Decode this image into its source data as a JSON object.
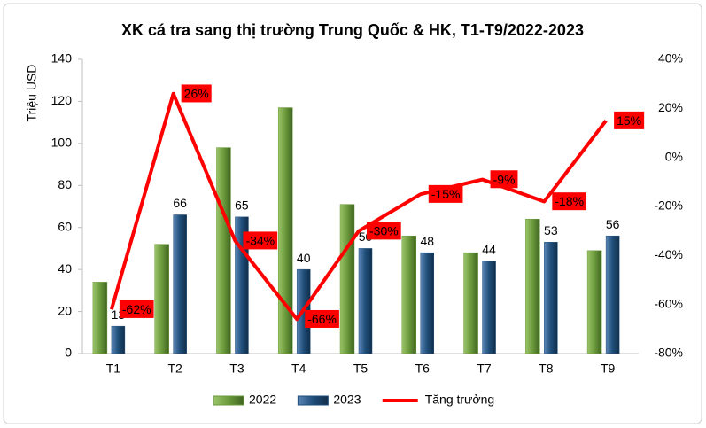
{
  "chart_data": {
    "type": "bar_line",
    "title": "XK cá tra sang thị trường Trung Quốc & HK, T1-T9/2022-2023",
    "y_label": "Triệu USD",
    "categories": [
      "T1",
      "T2",
      "T3",
      "T4",
      "T5",
      "T6",
      "T7",
      "T8",
      "T9"
    ],
    "series": [
      {
        "name": "2022",
        "type": "bar",
        "color": "#6b9a3c",
        "values": [
          34,
          52,
          98,
          117,
          71,
          56,
          48,
          64,
          49
        ]
      },
      {
        "name": "2023",
        "type": "bar",
        "color": "#1f4e79",
        "values": [
          13,
          66,
          65,
          40,
          50,
          48,
          44,
          53,
          56
        ],
        "show_labels": true
      },
      {
        "name": "Tăng trưởng",
        "type": "line",
        "axis": "y2",
        "color": "#ff0000",
        "values": [
          -62,
          26,
          -34,
          -66,
          -30,
          -15,
          -9,
          -18,
          15
        ],
        "value_labels": [
          "-62%",
          "26%",
          "-34%",
          "-66%",
          "-30%",
          "-15%",
          "-9%",
          "-18%",
          "15%"
        ]
      }
    ],
    "ylim": [
      0,
      140
    ],
    "yticks": [
      0,
      20,
      40,
      60,
      80,
      100,
      120,
      140
    ],
    "y2lim": [
      -80,
      40
    ],
    "y2ticks": [
      {
        "value": -80,
        "label": "-80%"
      },
      {
        "value": -60,
        "label": "-60%"
      },
      {
        "value": -40,
        "label": "-40%"
      },
      {
        "value": -20,
        "label": "-20%"
      },
      {
        "value": 0,
        "label": "0%"
      },
      {
        "value": 20,
        "label": "20%"
      },
      {
        "value": 40,
        "label": "40%"
      }
    ],
    "grid": false,
    "legend": "bottom"
  }
}
